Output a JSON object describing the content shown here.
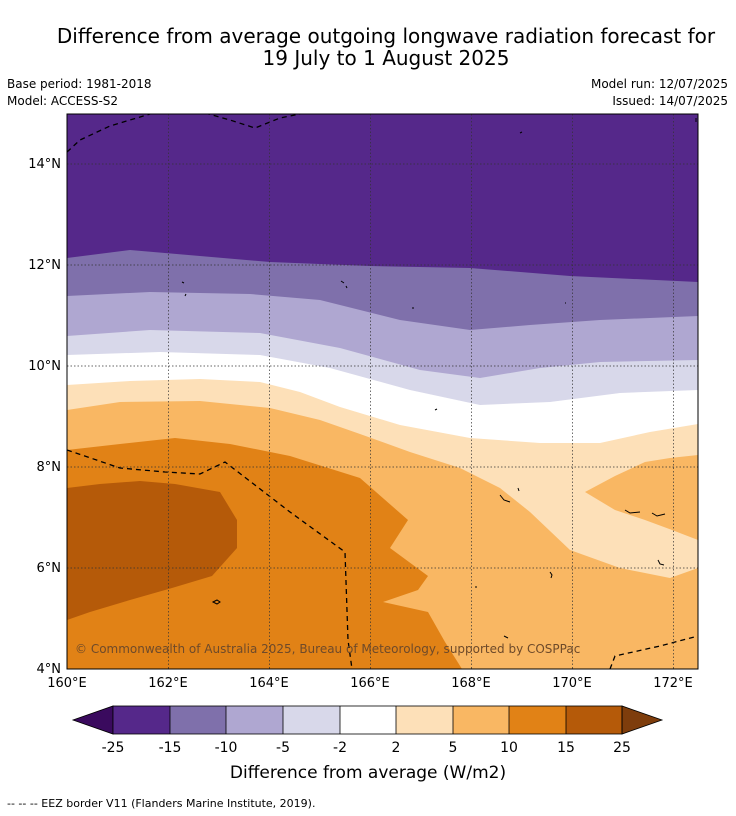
{
  "title": {
    "line1": "Difference from average outgoing longwave radiation forecast for",
    "line2": "19 July to 1 August 2025"
  },
  "meta": {
    "base_period": "Base period: 1981-2018",
    "model": "Model: ACCESS-S2",
    "model_run": "Model run: 12/07/2025",
    "issued": "Issued: 14/07/2025"
  },
  "map": {
    "lon_ticks": [
      "160°E",
      "162°E",
      "164°E",
      "166°E",
      "168°E",
      "170°E",
      "172°E"
    ],
    "lat_ticks": [
      "14°N",
      "12°N",
      "10°N",
      "8°N",
      "6°N",
      "4°N"
    ],
    "copyright": "© Commonwealth of Australia 2025, Bureau of Meteorology, supported by COSPPac"
  },
  "colorbar": {
    "ticks": [
      "-25",
      "-15",
      "-10",
      "-5",
      "-2",
      "2",
      "5",
      "10",
      "15",
      "25"
    ],
    "colors": [
      "#3a0a5e",
      "#55288a",
      "#7f70ab",
      "#afa7d1",
      "#d8d8ea",
      "#ffffff",
      "#fde0b8",
      "#f9b763",
      "#e18216",
      "#b55a09",
      "#7e3d0c"
    ],
    "label": "Difference from average (W/m2)"
  },
  "footer": "-- -- -- EEZ border V11 (Flanders Marine Institute, 2019)."
}
